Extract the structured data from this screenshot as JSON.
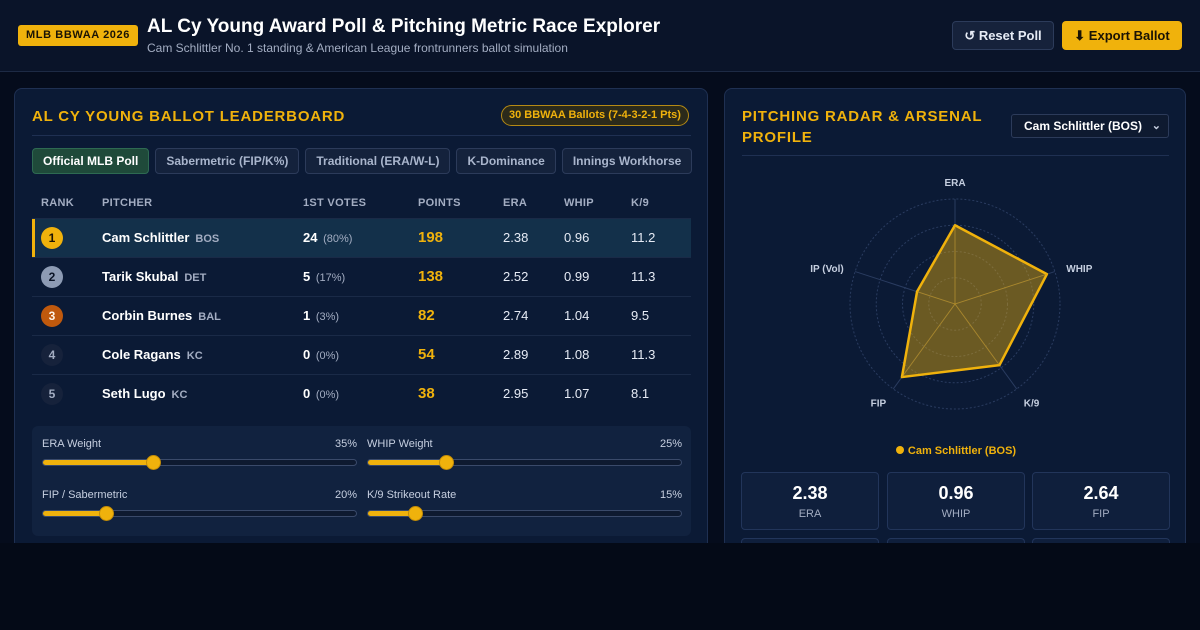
{
  "header": {
    "badge": "MLB BBWAA 2026",
    "title": "AL Cy Young Award Poll & Pitching Metric Race Explorer",
    "subtitle": "Cam Schlittler No. 1 standing & American League frontrunners ballot simulation",
    "reset_label": "↺ Reset Poll",
    "export_label": "⬇ Export Ballot"
  },
  "leaderboard": {
    "title": "AL CY YOUNG BALLOT LEADERBOARD",
    "ballot_badge": "30 BBWAA Ballots (7-4-3-2-1 Pts)",
    "tabs": [
      {
        "label": "Official MLB Poll",
        "active": true
      },
      {
        "label": "Sabermetric (FIP/K%)",
        "active": false
      },
      {
        "label": "Traditional (ERA/W-L)",
        "active": false
      },
      {
        "label": "K-Dominance",
        "active": false
      },
      {
        "label": "Innings Workhorse",
        "active": false
      }
    ],
    "columns": {
      "rank": "RANK",
      "pitcher": "PITCHER",
      "votes": "1ST VOTES",
      "points": "POINTS",
      "era": "ERA",
      "whip": "WHIP",
      "k9": "K/9"
    },
    "rows": [
      {
        "rank": "1",
        "name": "Cam Schlittler",
        "team": "BOS",
        "votes": "24",
        "pct": "(80%)",
        "points": "198",
        "era": "2.38",
        "whip": "0.96",
        "k9": "11.2"
      },
      {
        "rank": "2",
        "name": "Tarik Skubal",
        "team": "DET",
        "votes": "5",
        "pct": "(17%)",
        "points": "138",
        "era": "2.52",
        "whip": "0.99",
        "k9": "11.3"
      },
      {
        "rank": "3",
        "name": "Corbin Burnes",
        "team": "BAL",
        "votes": "1",
        "pct": "(3%)",
        "points": "82",
        "era": "2.74",
        "whip": "1.04",
        "k9": "9.5"
      },
      {
        "rank": "4",
        "name": "Cole Ragans",
        "team": "KC",
        "votes": "0",
        "pct": "(0%)",
        "points": "54",
        "era": "2.89",
        "whip": "1.08",
        "k9": "11.3"
      },
      {
        "rank": "5",
        "name": "Seth Lugo",
        "team": "KC",
        "votes": "0",
        "pct": "(0%)",
        "points": "38",
        "era": "2.95",
        "whip": "1.07",
        "k9": "8.1"
      }
    ]
  },
  "weights": [
    {
      "label": "ERA Weight",
      "value": "35%",
      "level": 35
    },
    {
      "label": "WHIP Weight",
      "value": "25%",
      "level": 25
    },
    {
      "label": "FIP / Sabermetric",
      "value": "20%",
      "level": 20
    },
    {
      "label": "K/9 Strikeout Rate",
      "value": "15%",
      "level": 15
    }
  ],
  "radar_panel": {
    "title_line1": "PITCHING RADAR & ARSENAL",
    "title_line2": "PROFILE",
    "selected_player": "Cam Schlittler (BOS)",
    "legend": "Cam Schlittler (BOS)",
    "accent_color": "#f0b20c"
  },
  "chart_data": {
    "type": "radar",
    "axes": [
      "ERA",
      "WHIP",
      "K/9",
      "FIP",
      "IP (Vol)"
    ],
    "series": [
      {
        "name": "Cam Schlittler (BOS)",
        "values": [
          0.75,
          0.92,
          0.72,
          0.86,
          0.38
        ]
      }
    ],
    "rings": 4,
    "legend_position": "bottom"
  },
  "stats": [
    {
      "value": "2.38",
      "label": "ERA"
    },
    {
      "value": "0.96",
      "label": "WHIP"
    },
    {
      "value": "2.64",
      "label": "FIP"
    }
  ]
}
